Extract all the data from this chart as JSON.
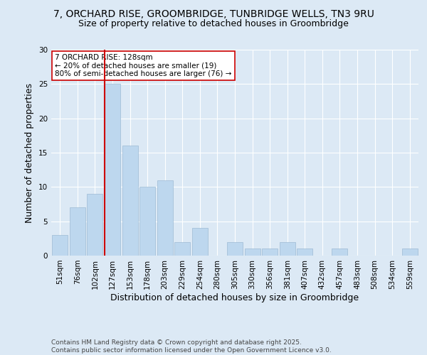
{
  "title1": "7, ORCHARD RISE, GROOMBRIDGE, TUNBRIDGE WELLS, TN3 9RU",
  "title2": "Size of property relative to detached houses in Groombridge",
  "xlabel": "Distribution of detached houses by size in Groombridge",
  "ylabel": "Number of detached properties",
  "categories": [
    "51sqm",
    "76sqm",
    "102sqm",
    "127sqm",
    "153sqm",
    "178sqm",
    "203sqm",
    "229sqm",
    "254sqm",
    "280sqm",
    "305sqm",
    "330sqm",
    "356sqm",
    "381sqm",
    "407sqm",
    "432sqm",
    "457sqm",
    "483sqm",
    "508sqm",
    "534sqm",
    "559sqm"
  ],
  "values": [
    3,
    7,
    9,
    25,
    16,
    10,
    11,
    2,
    4,
    0,
    2,
    1,
    1,
    2,
    1,
    0,
    1,
    0,
    0,
    0,
    1
  ],
  "bar_color": "#bdd7ee",
  "bar_edge_color": "#9dbbd4",
  "vline_x_index": 3,
  "vline_color": "#cc0000",
  "annotation_text": "7 ORCHARD RISE: 128sqm\n← 20% of detached houses are smaller (19)\n80% of semi-detached houses are larger (76) →",
  "annotation_box_color": "#ffffff",
  "annotation_box_edge": "#cc0000",
  "ylim": [
    0,
    30
  ],
  "yticks": [
    0,
    5,
    10,
    15,
    20,
    25,
    30
  ],
  "footnote": "Contains HM Land Registry data © Crown copyright and database right 2025.\nContains public sector information licensed under the Open Government Licence v3.0.",
  "background_color": "#dce9f5",
  "plot_bg_color": "#dce9f5",
  "title_fontsize": 10,
  "subtitle_fontsize": 9,
  "axis_label_fontsize": 9,
  "tick_fontsize": 7.5,
  "annotation_fontsize": 7.5,
  "footnote_fontsize": 6.5
}
